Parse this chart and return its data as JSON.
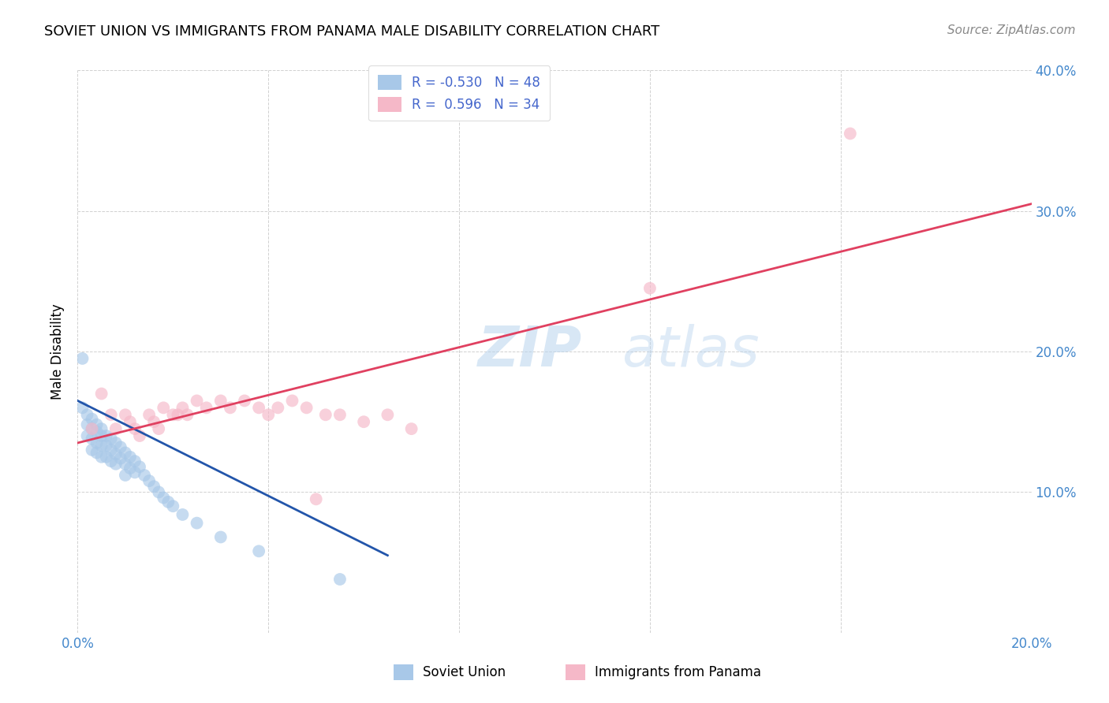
{
  "title": "SOVIET UNION VS IMMIGRANTS FROM PANAMA MALE DISABILITY CORRELATION CHART",
  "source": "Source: ZipAtlas.com",
  "ylabel": "Male Disability",
  "xlabel_blue": "Soviet Union",
  "xlabel_pink": "Immigrants from Panama",
  "xlim": [
    0.0,
    0.2
  ],
  "ylim": [
    0.0,
    0.4
  ],
  "x_ticks": [
    0.0,
    0.04,
    0.08,
    0.12,
    0.16,
    0.2
  ],
  "y_ticks": [
    0.0,
    0.1,
    0.2,
    0.3,
    0.4
  ],
  "x_tick_labels": [
    "0.0%",
    "",
    "",
    "",
    "",
    "20.0%"
  ],
  "y_tick_labels": [
    "",
    "10.0%",
    "20.0%",
    "30.0%",
    "40.0%"
  ],
  "R_blue": -0.53,
  "N_blue": 48,
  "R_pink": 0.596,
  "N_pink": 34,
  "blue_color": "#a8c8e8",
  "pink_color": "#f5b8c8",
  "blue_line_color": "#2255aa",
  "pink_line_color": "#e04060",
  "grid_color": "#cccccc",
  "title_fontsize": 13,
  "source_fontsize": 11,
  "blue_points_x": [
    0.001,
    0.001,
    0.002,
    0.002,
    0.002,
    0.003,
    0.003,
    0.003,
    0.003,
    0.004,
    0.004,
    0.004,
    0.004,
    0.005,
    0.005,
    0.005,
    0.005,
    0.006,
    0.006,
    0.006,
    0.007,
    0.007,
    0.007,
    0.008,
    0.008,
    0.008,
    0.009,
    0.009,
    0.01,
    0.01,
    0.01,
    0.011,
    0.011,
    0.012,
    0.012,
    0.013,
    0.014,
    0.015,
    0.016,
    0.017,
    0.018,
    0.019,
    0.02,
    0.022,
    0.025,
    0.03,
    0.038,
    0.055
  ],
  "blue_points_y": [
    0.195,
    0.16,
    0.155,
    0.148,
    0.14,
    0.152,
    0.145,
    0.138,
    0.13,
    0.148,
    0.143,
    0.135,
    0.128,
    0.145,
    0.14,
    0.133,
    0.125,
    0.14,
    0.133,
    0.125,
    0.138,
    0.13,
    0.122,
    0.135,
    0.127,
    0.12,
    0.132,
    0.124,
    0.128,
    0.12,
    0.112,
    0.125,
    0.117,
    0.122,
    0.114,
    0.118,
    0.112,
    0.108,
    0.104,
    0.1,
    0.096,
    0.093,
    0.09,
    0.084,
    0.078,
    0.068,
    0.058,
    0.038
  ],
  "pink_points_x": [
    0.003,
    0.005,
    0.007,
    0.008,
    0.01,
    0.011,
    0.012,
    0.013,
    0.015,
    0.016,
    0.017,
    0.018,
    0.02,
    0.021,
    0.022,
    0.023,
    0.025,
    0.027,
    0.03,
    0.032,
    0.035,
    0.038,
    0.04,
    0.042,
    0.045,
    0.048,
    0.05,
    0.052,
    0.055,
    0.06,
    0.065,
    0.07,
    0.12,
    0.162
  ],
  "pink_points_y": [
    0.145,
    0.17,
    0.155,
    0.145,
    0.155,
    0.15,
    0.145,
    0.14,
    0.155,
    0.15,
    0.145,
    0.16,
    0.155,
    0.155,
    0.16,
    0.155,
    0.165,
    0.16,
    0.165,
    0.16,
    0.165,
    0.16,
    0.155,
    0.16,
    0.165,
    0.16,
    0.095,
    0.155,
    0.155,
    0.15,
    0.155,
    0.145,
    0.245,
    0.355
  ],
  "blue_line_x": [
    0.0,
    0.065
  ],
  "blue_line_y": [
    0.165,
    0.055
  ],
  "pink_line_x": [
    0.0,
    0.2
  ],
  "pink_line_y": [
    0.135,
    0.305
  ]
}
